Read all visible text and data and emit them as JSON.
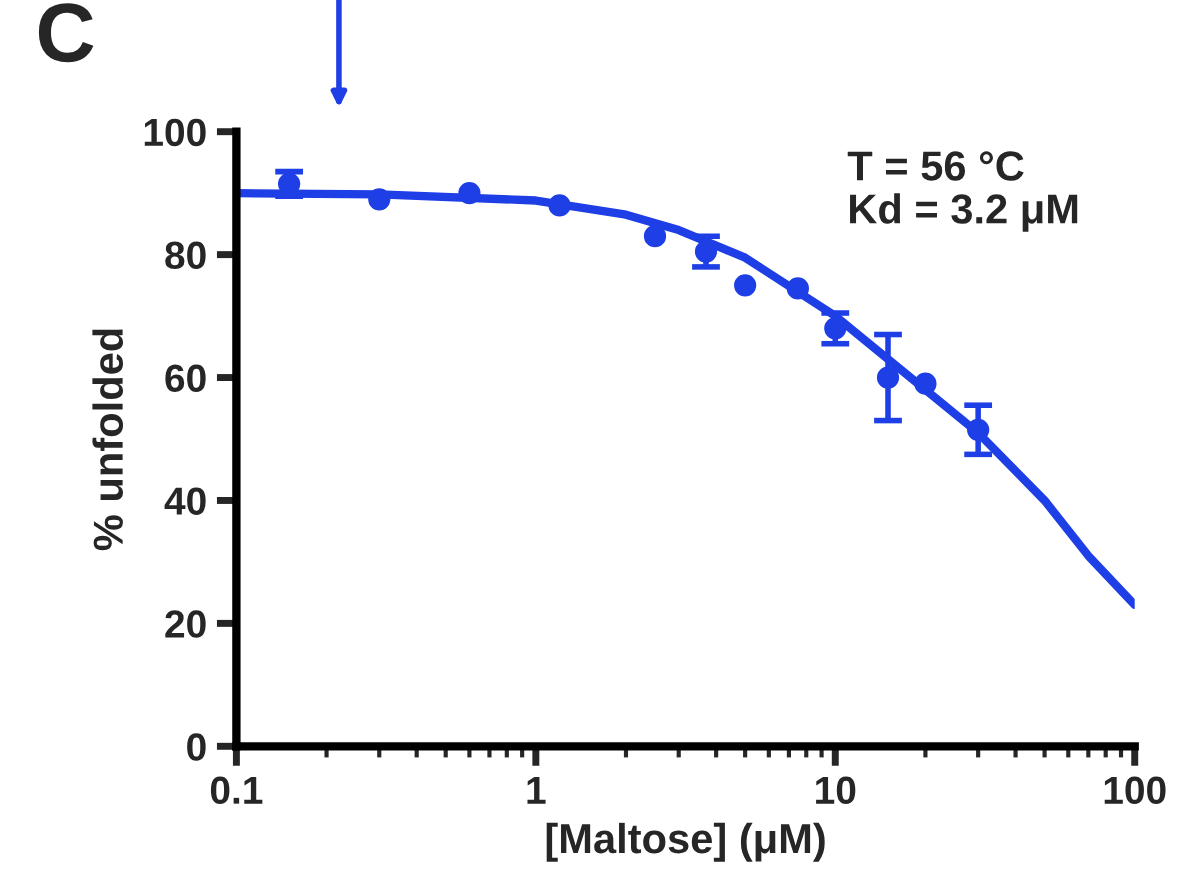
{
  "chart_data": {
    "type": "scatter",
    "xlabel": "[Maltose] (μM)",
    "ylabel": "% unfolded",
    "log": "x",
    "xlim": [
      0.1,
      100
    ],
    "xticks": [
      0.1,
      1,
      10,
      100
    ],
    "ylim": [
      0,
      100
    ],
    "yticks": [
      0,
      20,
      40,
      60,
      80,
      100
    ],
    "grid": false,
    "series": [
      {
        "marker": "circle",
        "color": "#1f3fe6",
        "x": [
          0.15,
          0.3,
          0.6,
          1.2,
          2.5,
          3.7,
          5,
          7.5,
          10,
          15,
          20,
          30
        ],
        "values": [
          91.5,
          89,
          90,
          88,
          83,
          80.5,
          75,
          74.5,
          68,
          60,
          59,
          51.5
        ],
        "errors": [
          2,
          null,
          null,
          null,
          null,
          2.5,
          null,
          null,
          2.5,
          7,
          null,
          4
        ]
      },
      {
        "type": "line",
        "color": "#1f3fe6",
        "line_style": "solid",
        "x": [
          0.1,
          0.3,
          1,
          2,
          3,
          5,
          10,
          20,
          30,
          50,
          70,
          100
        ],
        "values": [
          90,
          89.8,
          88.8,
          86.5,
          84,
          79.5,
          70,
          58,
          51,
          40,
          31,
          23
        ]
      }
    ],
    "annotations": [
      "C",
      "T = 56 °C",
      "Kd = 3.2 μM"
    ]
  }
}
